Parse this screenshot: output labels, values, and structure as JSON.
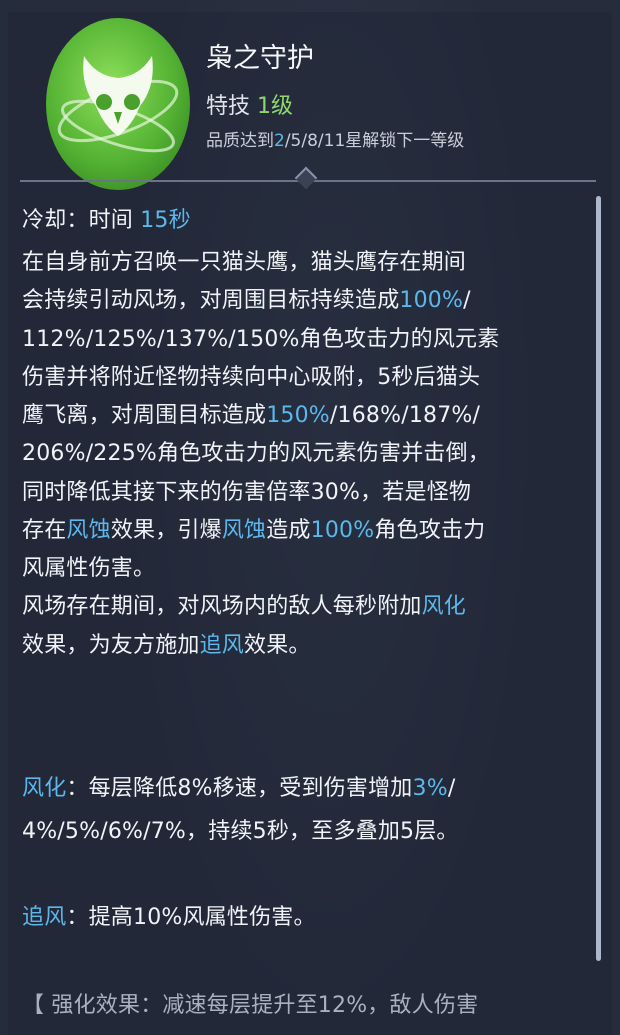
{
  "skill": {
    "name": "枭之守护",
    "type_label": "特技",
    "level": "1级",
    "unlock_req": [
      {
        "t": "品质达到"
      },
      {
        "t": "2",
        "hl": true
      },
      {
        "t": "/5/8/11星解锁下一等级"
      }
    ],
    "icon": "owl-wind-emblem-icon",
    "icon_color": "#5fbf3a"
  },
  "colors": {
    "highlight": "#5cb8ec",
    "level": "#8fd870",
    "background": "#252c3b"
  },
  "description_lines": [
    [
      {
        "t": "冷却：时间 "
      },
      {
        "t": "15秒",
        "hl": true
      }
    ],
    [
      {
        "t": "在自身前方召唤一只猫头鹰，猫头鹰存在期间"
      }
    ],
    [
      {
        "t": "会持续引动风场，对周围目标持续造成"
      },
      {
        "t": "100%",
        "hl": true
      },
      {
        "t": "/"
      }
    ],
    [
      {
        "t": "112%/125%/137%/150%角色攻击力的风元素"
      }
    ],
    [
      {
        "t": "伤害并将附近怪物持续向中心吸附，5秒后猫头"
      }
    ],
    [
      {
        "t": "鹰飞离，对周围目标造成"
      },
      {
        "t": "150%",
        "hl": true
      },
      {
        "t": "/168%/187%/"
      }
    ],
    [
      {
        "t": "206%/225%角色攻击力的风元素伤害并击倒，"
      }
    ],
    [
      {
        "t": "同时降低其接下来的伤害倍率30%，若是怪物"
      }
    ],
    [
      {
        "t": "存在"
      },
      {
        "t": "风蚀",
        "hl": true
      },
      {
        "t": "效果，引爆"
      },
      {
        "t": "风蚀",
        "hl": true
      },
      {
        "t": "造成"
      },
      {
        "t": "100%",
        "hl": true
      },
      {
        "t": "角色攻击力"
      }
    ],
    [
      {
        "t": "风属性伤害。"
      }
    ],
    [
      {
        "t": "风场存在期间，对风场内的敌人每秒附加"
      },
      {
        "t": "风化",
        "hl": true
      }
    ],
    [
      {
        "t": "效果，为友方施加"
      },
      {
        "t": "追风",
        "hl": true
      },
      {
        "t": "效果。"
      }
    ],
    [
      {
        "t": "风化",
        "hl": true
      },
      {
        "t": "：每层降低8%移速，受到伤害增加"
      },
      {
        "t": "3%",
        "hl": true
      },
      {
        "t": "/"
      }
    ],
    [
      {
        "t": "4%/5%/6%/7%，持续5秒，至多叠加5层。"
      }
    ],
    [
      {
        "t": "追风",
        "hl": true
      },
      {
        "t": "：提高10%风属性伤害。"
      }
    ],
    [
      {
        "t": "【 强化效果：减速每层提升至12%，敌人伤害"
      }
    ]
  ]
}
